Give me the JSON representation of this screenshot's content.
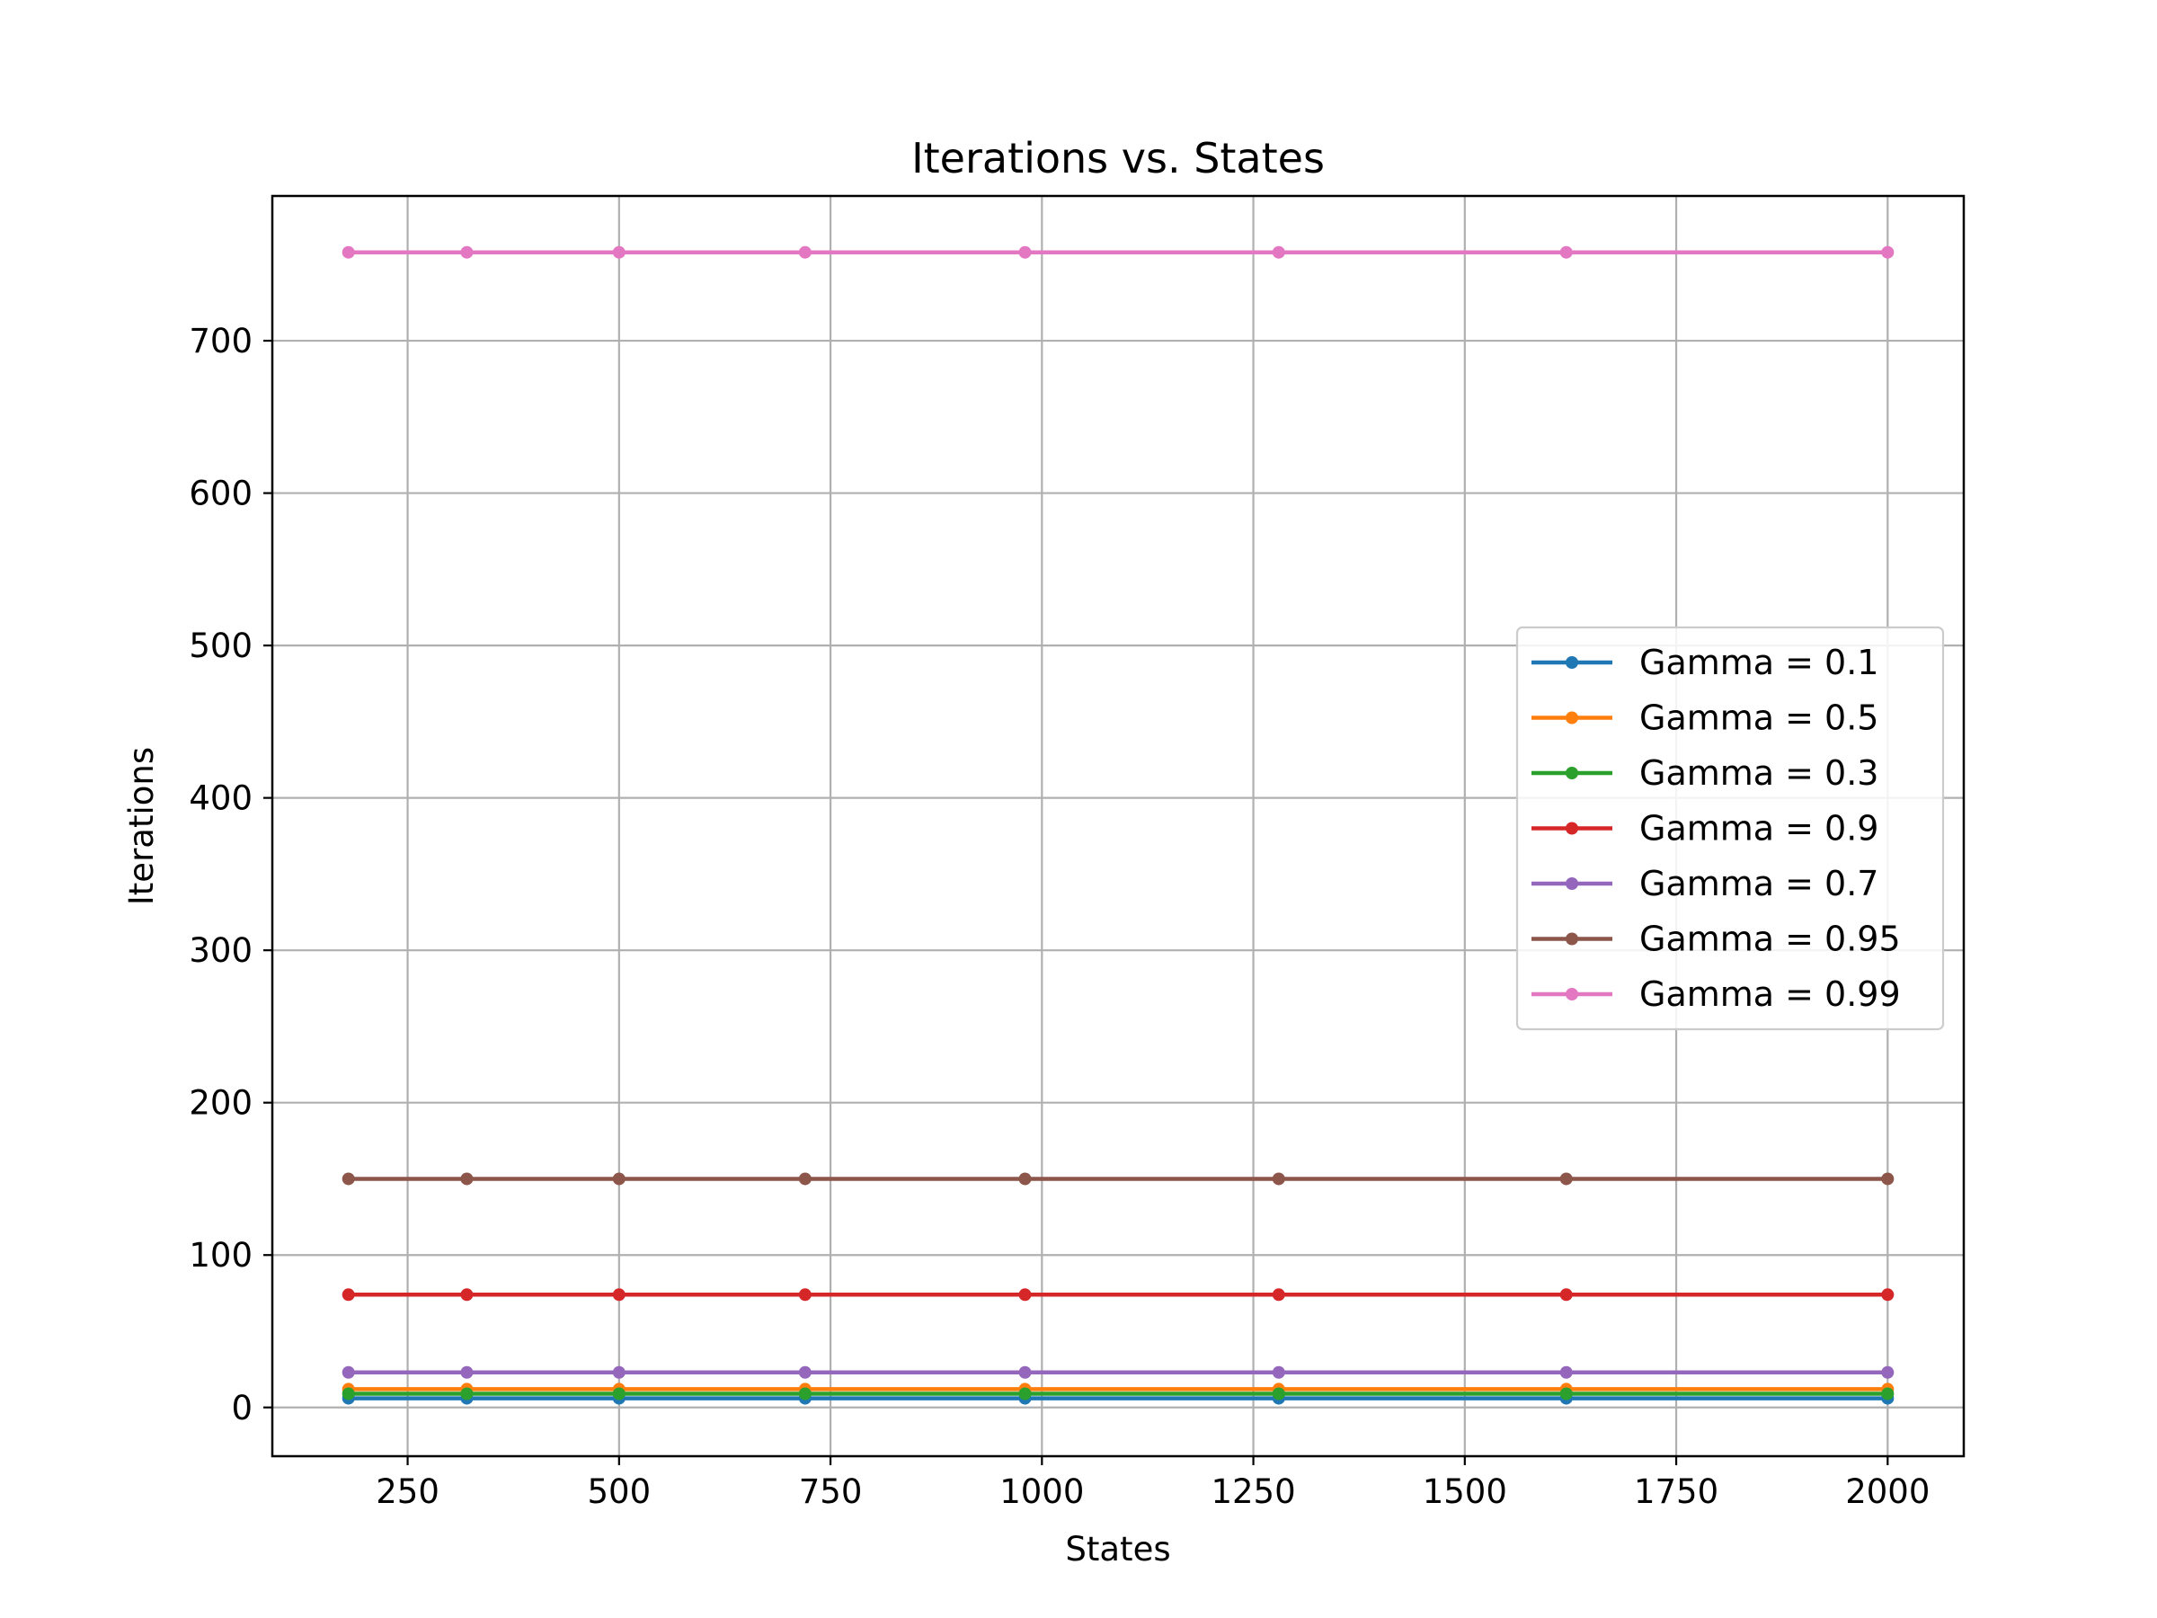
{
  "chart_data": {
    "type": "line",
    "title": "Iterations vs. States",
    "xlabel": "States",
    "ylabel": "Iterations",
    "xlim": [
      90,
      2090
    ],
    "ylim": [
      -32,
      795
    ],
    "xticks": [
      250,
      500,
      750,
      1000,
      1250,
      1500,
      1750,
      2000
    ],
    "yticks": [
      0,
      100,
      200,
      300,
      400,
      500,
      600,
      700
    ],
    "grid": true,
    "legend_position": "center-right",
    "x": [
      180,
      320,
      500,
      720,
      980,
      1280,
      1620,
      2000
    ],
    "series": [
      {
        "name": "Gamma = 0.1",
        "color": "#1f77b4",
        "values": [
          6,
          6,
          6,
          6,
          6,
          6,
          6,
          6
        ]
      },
      {
        "name": "Gamma = 0.5",
        "color": "#ff7f0e",
        "values": [
          12,
          12,
          12,
          12,
          12,
          12,
          12,
          12
        ]
      },
      {
        "name": "Gamma = 0.3",
        "color": "#2ca02c",
        "values": [
          9,
          9,
          9,
          9,
          9,
          9,
          9,
          9
        ]
      },
      {
        "name": "Gamma = 0.9",
        "color": "#d62728",
        "values": [
          74,
          74,
          74,
          74,
          74,
          74,
          74,
          74
        ]
      },
      {
        "name": "Gamma = 0.7",
        "color": "#9467bd",
        "values": [
          23,
          23,
          23,
          23,
          23,
          23,
          23,
          23
        ]
      },
      {
        "name": "Gamma = 0.95",
        "color": "#8c564b",
        "values": [
          150,
          150,
          150,
          150,
          150,
          150,
          150,
          150
        ]
      },
      {
        "name": "Gamma = 0.99",
        "color": "#e377c2",
        "values": [
          758,
          758,
          758,
          758,
          758,
          758,
          758,
          758
        ]
      }
    ]
  }
}
